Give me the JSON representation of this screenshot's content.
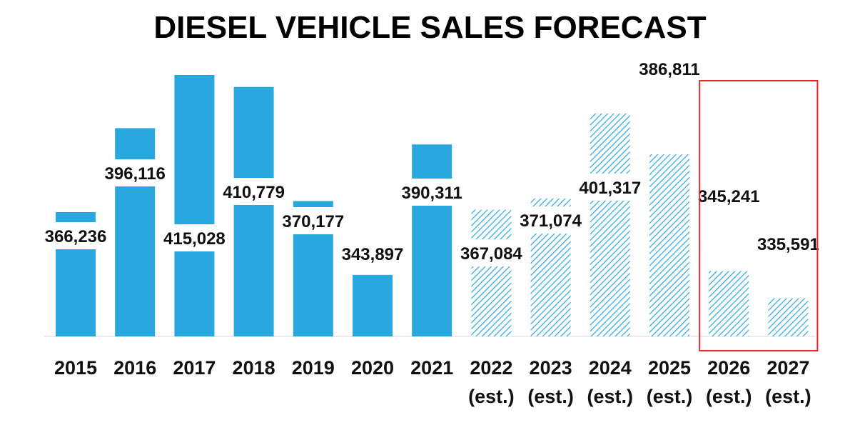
{
  "chart_data": {
    "type": "bar",
    "title": "DIESEL VEHICLE SALES FORECAST",
    "xlabel": "",
    "ylabel": "",
    "categories": [
      [
        "2015"
      ],
      [
        "2016"
      ],
      [
        "2017"
      ],
      [
        "2018"
      ],
      [
        "2019"
      ],
      [
        "2020"
      ],
      [
        "2021"
      ],
      [
        "2022",
        "(est.)"
      ],
      [
        "2023",
        "(est.)"
      ],
      [
        "2024",
        "(est.)"
      ],
      [
        "2025",
        "(est.)"
      ],
      [
        "2026",
        "(est.)"
      ],
      [
        "2027",
        "(est.)"
      ]
    ],
    "values": [
      366236,
      396116,
      415028,
      410779,
      370177,
      343897,
      390311,
      367084,
      371074,
      401317,
      386811,
      345241,
      335591
    ],
    "value_labels": [
      "366,236",
      "396,116",
      "415,028",
      "410,779",
      "370,177",
      "343,897",
      "390,311",
      "367,084",
      "371,074",
      "401,317",
      "386,811",
      "345,241",
      "335,591"
    ],
    "estimated": [
      false,
      false,
      false,
      false,
      false,
      false,
      false,
      true,
      true,
      true,
      true,
      true,
      true
    ],
    "highlighted": [
      false,
      false,
      false,
      false,
      false,
      false,
      false,
      false,
      false,
      false,
      false,
      true,
      true
    ],
    "ylim": [
      0,
      420000
    ],
    "grid": false,
    "legend": "none",
    "colors": {
      "bar": "#29a8e0",
      "highlight_box": "#e8262a",
      "label_bg": "#ffffff"
    }
  }
}
